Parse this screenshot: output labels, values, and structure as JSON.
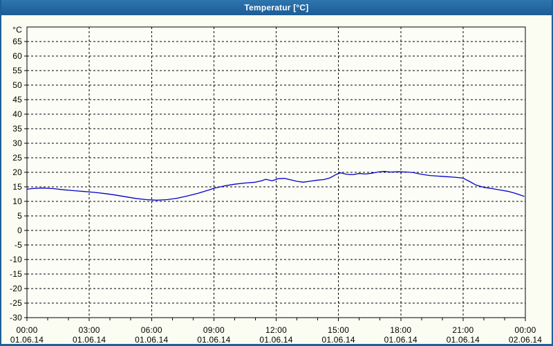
{
  "window": {
    "title": "Temperatur [°C]"
  },
  "colors": {
    "titlebar_top": "#2e76b0",
    "titlebar_bottom": "#1c5c94",
    "window_border": "#1d5f97",
    "background": "#fbfcf2",
    "plot_background": "#fdfdf8",
    "grid": "#000000",
    "axis": "#000000",
    "text": "#000000",
    "line": "#0000c8"
  },
  "chart_data": {
    "type": "line",
    "title": "Temperatur [°C]",
    "y_unit_label": "°C",
    "ylim": [
      -30,
      70
    ],
    "xlim_hours": [
      0,
      24
    ],
    "grid": "dashed",
    "legend": "none",
    "y_tick_labels": [
      65,
      60,
      55,
      50,
      45,
      40,
      35,
      30,
      25,
      20,
      15,
      10,
      5,
      0,
      -5,
      -10,
      -15,
      -20,
      -25,
      -30
    ],
    "x_minor_tick_step_hours": 1,
    "x_ticks": [
      {
        "hour": 0,
        "time": "00:00",
        "date": "01.06.14"
      },
      {
        "hour": 3,
        "time": "03:00",
        "date": "01.06.14"
      },
      {
        "hour": 6,
        "time": "06:00",
        "date": "01.06.14"
      },
      {
        "hour": 9,
        "time": "09:00",
        "date": "01.06.14"
      },
      {
        "hour": 12,
        "time": "12:00",
        "date": "01.06.14"
      },
      {
        "hour": 15,
        "time": "15:00",
        "date": "01.06.14"
      },
      {
        "hour": 18,
        "time": "18:00",
        "date": "01.06.14"
      },
      {
        "hour": 21,
        "time": "21:00",
        "date": "01.06.14"
      },
      {
        "hour": 24,
        "time": "00:00",
        "date": "02.06.14"
      }
    ],
    "series": [
      {
        "name": "Temperatur",
        "points": [
          [
            0.0,
            14.2
          ],
          [
            0.25,
            14.4
          ],
          [
            0.75,
            14.6
          ],
          [
            1.25,
            14.4
          ],
          [
            1.75,
            14.0
          ],
          [
            2.25,
            13.7
          ],
          [
            2.75,
            13.4
          ],
          [
            3.25,
            13.1
          ],
          [
            3.75,
            12.7
          ],
          [
            4.25,
            12.2
          ],
          [
            4.75,
            11.6
          ],
          [
            5.25,
            11.0
          ],
          [
            5.75,
            10.6
          ],
          [
            6.25,
            10.4
          ],
          [
            6.75,
            10.6
          ],
          [
            7.25,
            11.1
          ],
          [
            7.75,
            11.9
          ],
          [
            8.25,
            12.8
          ],
          [
            8.75,
            13.9
          ],
          [
            9.0,
            14.5
          ],
          [
            9.5,
            15.3
          ],
          [
            10.0,
            15.9
          ],
          [
            10.5,
            16.3
          ],
          [
            11.0,
            16.6
          ],
          [
            11.3,
            17.1
          ],
          [
            11.5,
            17.6
          ],
          [
            11.8,
            17.1
          ],
          [
            12.1,
            17.8
          ],
          [
            12.4,
            17.9
          ],
          [
            12.7,
            17.4
          ],
          [
            13.0,
            16.9
          ],
          [
            13.3,
            16.6
          ],
          [
            13.6,
            16.9
          ],
          [
            14.0,
            17.3
          ],
          [
            14.3,
            17.5
          ],
          [
            14.6,
            18.1
          ],
          [
            14.9,
            19.3
          ],
          [
            15.1,
            19.8
          ],
          [
            15.4,
            19.3
          ],
          [
            15.7,
            19.2
          ],
          [
            16.0,
            19.6
          ],
          [
            16.3,
            19.4
          ],
          [
            16.6,
            19.7
          ],
          [
            16.9,
            20.1
          ],
          [
            17.2,
            20.3
          ],
          [
            17.5,
            20.1
          ],
          [
            17.9,
            20.2
          ],
          [
            18.3,
            20.1
          ],
          [
            18.6,
            19.9
          ],
          [
            19.0,
            19.3
          ],
          [
            19.4,
            18.9
          ],
          [
            19.8,
            18.7
          ],
          [
            20.2,
            18.5
          ],
          [
            20.6,
            18.3
          ],
          [
            21.0,
            18.0
          ],
          [
            21.3,
            16.9
          ],
          [
            21.6,
            15.7
          ],
          [
            22.0,
            14.8
          ],
          [
            22.4,
            14.4
          ],
          [
            22.8,
            13.9
          ],
          [
            23.2,
            13.4
          ],
          [
            23.5,
            12.8
          ],
          [
            23.8,
            12.1
          ],
          [
            23.95,
            11.7
          ]
        ]
      }
    ]
  }
}
